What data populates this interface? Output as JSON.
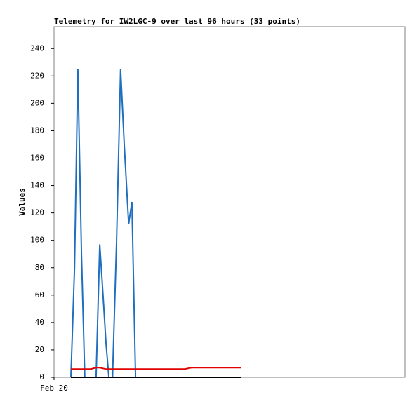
{
  "chart_data": {
    "type": "line",
    "title": "Telemetry for IW2LGC-9 over last 96 hours (33 points)",
    "ylabel": "Values",
    "x": [
      4.6,
      5.6,
      6.5,
      7.5,
      8.4,
      10.0,
      11.5,
      12.5,
      13.4,
      14.2,
      15.0,
      16.0,
      17.1,
      18.2,
      19.2,
      20.4,
      21.3,
      22.3,
      24.2,
      26.1,
      28.0,
      30.0,
      31.9,
      33.8,
      35.7,
      37.6,
      39.5,
      41.5,
      43.4,
      45.3,
      47.2,
      49.2,
      51.1
    ],
    "series": [
      {
        "color": "#000000",
        "values": [
          0,
          0,
          0,
          0,
          0,
          0,
          0,
          0,
          0,
          0,
          0,
          0,
          0,
          0,
          0,
          0,
          0,
          0,
          0,
          0,
          0,
          0,
          0,
          0,
          0,
          0,
          0,
          0,
          0,
          0,
          0,
          0,
          0
        ]
      },
      {
        "color": "#e00000",
        "values": [
          6,
          6,
          6,
          6,
          6,
          6,
          7,
          7,
          6.5,
          6,
          6,
          6,
          6,
          6,
          6,
          6,
          6,
          6,
          6,
          6,
          6,
          6,
          6,
          6,
          6,
          7,
          7,
          7,
          7,
          7,
          7,
          7,
          7
        ]
      },
      {
        "color": "#1e6fbf",
        "values": [
          0,
          80,
          225,
          90,
          0,
          0,
          0,
          97,
          60,
          25,
          0,
          0,
          100,
          225,
          170,
          112,
          128,
          0,
          0,
          0,
          0,
          0,
          0,
          0,
          0,
          0,
          0,
          0,
          0,
          0,
          0,
          0,
          0
        ]
      }
    ],
    "xlim": [
      0,
      96
    ],
    "xticks": [
      {
        "value": 0,
        "label": "Feb 20"
      }
    ],
    "ylim": [
      0,
      256
    ],
    "yticks": [
      0,
      20,
      40,
      60,
      80,
      100,
      120,
      140,
      160,
      180,
      200,
      220,
      240
    ]
  }
}
